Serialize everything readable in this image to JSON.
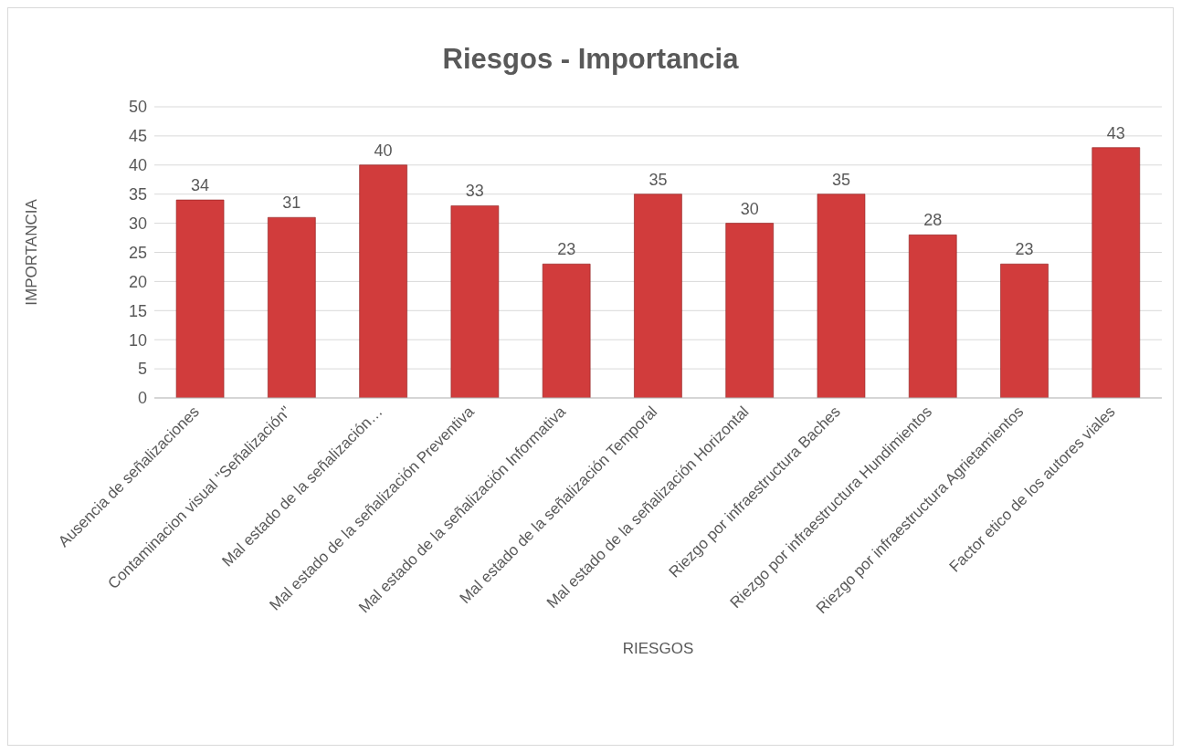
{
  "chart_data": {
    "type": "bar",
    "title": "Riesgos - Importancia",
    "xlabel": "RIESGOS",
    "ylabel": "IMPORTANCIA",
    "categories": [
      "Ausencia de señalizaciones",
      "Contaminacion visual \"Señalización\"",
      "Mal estado de la señalización…",
      "Mal estado de la señalización Preventiva",
      "Mal estado de la señalización Informativa",
      "Mal estado de la señalización Temporal",
      "Mal estado de la señalización Horizontal",
      "Riezgo por infraestructura Baches",
      "Riezgo por infraestructura Hundimientos",
      "Riezgo por infraestructura Agrietamientos",
      "Factor etico de los autores viales"
    ],
    "values": [
      34,
      31,
      40,
      33,
      23,
      35,
      30,
      35,
      28,
      23,
      43
    ],
    "color": "#d13c3c",
    "ylim": [
      0,
      50
    ],
    "yticks": [
      0,
      5,
      10,
      15,
      20,
      25,
      30,
      35,
      40,
      45,
      50
    ],
    "grid": "y",
    "data_labels": true
  }
}
